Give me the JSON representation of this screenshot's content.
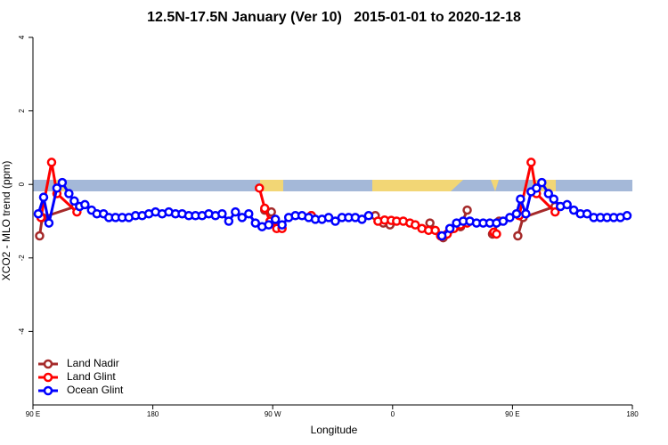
{
  "chart_data": {
    "type": "line",
    "title": "12.5N-17.5N January (Ver 10)   2015-01-01 to 2020-12-18",
    "x_label": "Longitude",
    "y_label": "XCO2 - MLO trend (ppm)",
    "xlim": [
      90,
      540
    ],
    "ylim": [
      -6,
      4
    ],
    "xticks": [
      {
        "value": 90,
        "label": "90 E"
      },
      180,
      {
        "value": 270,
        "label": "90 W"
      },
      {
        "value": 360,
        "label": "0"
      },
      {
        "value": 450,
        "label": "90 E"
      },
      {
        "value": 540,
        "label": "180"
      }
    ],
    "yticks": [
      -4,
      -2,
      0,
      2,
      4
    ],
    "legend": "bottomleft",
    "series": [
      {
        "name": "Land Nadir",
        "color": "#a52a2a",
        "x": [
          95,
          97,
          122,
          190,
          264,
          269,
          273,
          285,
          299,
          320,
          347,
          353,
          358,
          375,
          388,
          398,
          411,
          416,
          425,
          435,
          440,
          445,
          454,
          458,
          482
        ],
        "values": [
          -1.4,
          -0.9,
          -0.6,
          null,
          -0.7,
          -0.75,
          -1.15,
          null,
          -0.85,
          null,
          -0.85,
          -1.05,
          -1.1,
          null,
          -1.05,
          -1.45,
          -1.15,
          -0.7,
          null,
          -1.35,
          -1.0,
          null,
          -1.4,
          -0.9,
          -0.6
        ]
      },
      {
        "name": "Land Glint",
        "color": "#ff0000",
        "x": [
          96,
          104,
          108,
          123,
          190,
          260,
          264,
          268,
          273,
          277,
          285,
          299,
          320,
          349,
          354,
          359,
          363,
          368,
          373,
          377,
          382,
          387,
          392,
          396,
          401,
          406,
          411,
          416,
          425,
          436,
          438,
          445,
          455,
          464,
          468,
          482
        ],
        "values": [
          -0.9,
          0.6,
          -0.25,
          -0.75,
          null,
          -0.1,
          -0.65,
          -1.0,
          -1.2,
          -1.2,
          null,
          -0.85,
          null,
          -1.0,
          -0.97,
          -0.98,
          -1.0,
          -1.0,
          -1.05,
          -1.1,
          -1.2,
          -1.25,
          -1.25,
          -1.4,
          -1.35,
          -1.2,
          -1.1,
          -1.05,
          null,
          -1.3,
          -1.35,
          null,
          -0.85,
          0.6,
          -0.25,
          -0.75
        ]
      },
      {
        "name": "Ocean Glint",
        "color": "#0000ff",
        "x": [
          94,
          98,
          102,
          108,
          112,
          117,
          121,
          125,
          129,
          134,
          138,
          143,
          147,
          152,
          157,
          162,
          167,
          172,
          177,
          182,
          187,
          192,
          197,
          202,
          207,
          212,
          217,
          222,
          227,
          232,
          237,
          242,
          247,
          252,
          257,
          262,
          267,
          272,
          277,
          282,
          287,
          292,
          297,
          302,
          307,
          312,
          317,
          322,
          327,
          332,
          337,
          342,
          370,
          397,
          403,
          408,
          413,
          418,
          423,
          428,
          433,
          438,
          443,
          448,
          453,
          456,
          460,
          464,
          468,
          472,
          477,
          481,
          486,
          491,
          496,
          501,
          506,
          511,
          516,
          521,
          526,
          531,
          536
        ],
        "values": [
          -0.8,
          -0.35,
          -1.05,
          -0.1,
          0.05,
          -0.25,
          -0.45,
          -0.6,
          -0.55,
          -0.7,
          -0.8,
          -0.8,
          -0.9,
          -0.9,
          -0.9,
          -0.9,
          -0.85,
          -0.85,
          -0.8,
          -0.75,
          -0.8,
          -0.75,
          -0.8,
          -0.8,
          -0.85,
          -0.85,
          -0.85,
          -0.8,
          -0.85,
          -0.8,
          -1.0,
          -0.75,
          -0.9,
          -0.8,
          -1.05,
          -1.15,
          -1.1,
          -0.95,
          -1.1,
          -0.9,
          -0.85,
          -0.85,
          -0.9,
          -0.95,
          -0.95,
          -0.9,
          -1.0,
          -0.9,
          -0.9,
          -0.9,
          -0.95,
          -0.85,
          null,
          -1.4,
          -1.2,
          -1.05,
          -1.0,
          -1.0,
          -1.05,
          -1.05,
          -1.05,
          -1.05,
          -1.0,
          -0.9,
          -0.8,
          -0.4,
          -0.8,
          -0.2,
          -0.1,
          0.05,
          -0.25,
          -0.4,
          -0.6,
          -0.55,
          -0.7,
          -0.8,
          -0.8,
          -0.9,
          -0.9,
          -0.9,
          -0.9,
          -0.9,
          -0.85
        ]
      }
    ]
  }
}
